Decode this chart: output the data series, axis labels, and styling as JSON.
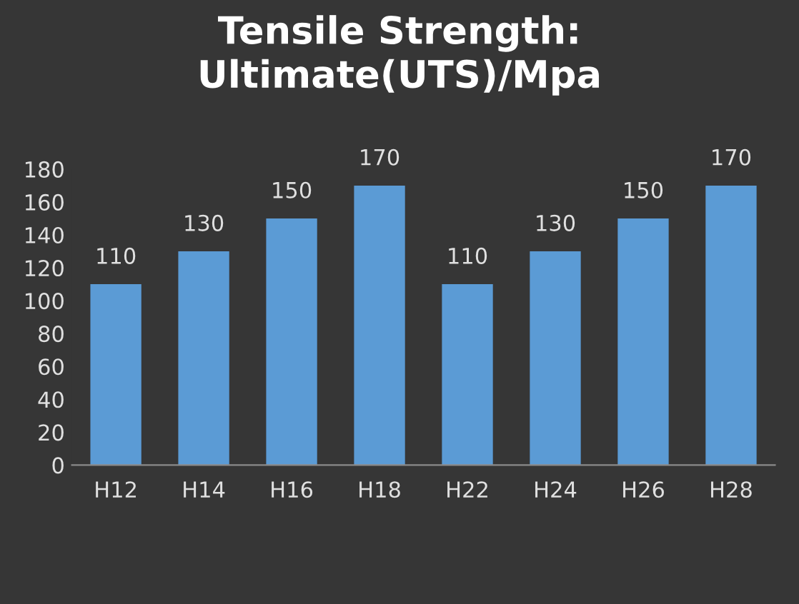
{
  "chart_data": {
    "type": "bar",
    "title": "Tensile Strength:\nUltimate(UTS)/Mpa",
    "categories": [
      "H12",
      "H14",
      "H16",
      "H18",
      "H22",
      "H24",
      "H26",
      "H28"
    ],
    "values": [
      110,
      130,
      150,
      170,
      110,
      130,
      150,
      170
    ],
    "color": "#5b9bd5",
    "ylim": [
      0,
      180
    ],
    "yticks": [
      0,
      20,
      40,
      60,
      80,
      100,
      120,
      140,
      160,
      180
    ],
    "data_labels": true,
    "grid": false,
    "legend": false
  }
}
